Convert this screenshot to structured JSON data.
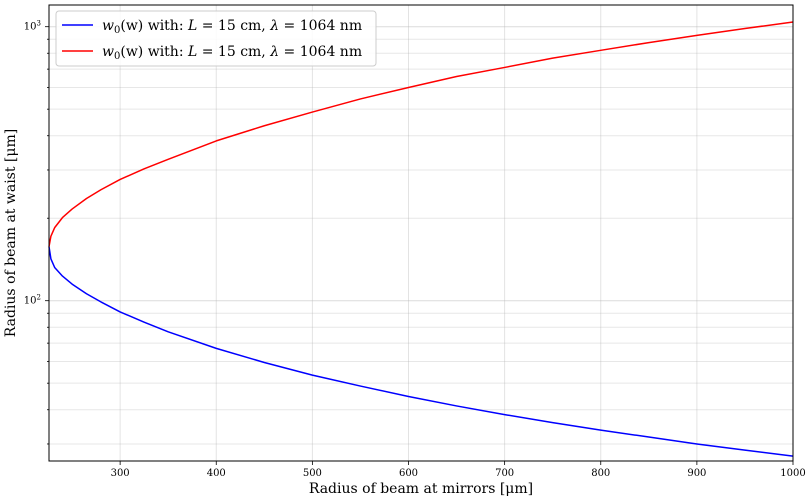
{
  "chart_data": {
    "type": "line",
    "xlabel": "Radius of beam at mirrors [μm]",
    "ylabel": "Radius of beam at waist [μm]",
    "xlim": [
      226,
      1000
    ],
    "ylim": [
      26,
      1200
    ],
    "yscale": "log",
    "grid": true,
    "legend_placement": "top-left",
    "x_ticks": [
      300,
      400,
      500,
      600,
      700,
      800,
      900,
      1000
    ],
    "y_major_ticks": [
      {
        "value": 100,
        "base": "10",
        "exp": "2"
      },
      {
        "value": 1000,
        "base": "10",
        "exp": "3"
      }
    ],
    "series": [
      {
        "name_prefix": "w",
        "name_sub": "0",
        "name_arg": "(w) with: ",
        "name_L": "L",
        "name_mid": " = 15 cm, ",
        "name_lambda": "λ",
        "name_tail": " = 1064 nm",
        "color": "#0000ff",
        "x": [
          226,
          228,
          232,
          240,
          250,
          265,
          280,
          300,
          325,
          350,
          400,
          450,
          500,
          550,
          600,
          650,
          700,
          750,
          800,
          850,
          900,
          950,
          1000
        ],
        "y": [
          157.5,
          142,
          132,
          123,
          115,
          106,
          99,
          91,
          83.5,
          77,
          67,
          59.5,
          53.5,
          48.8,
          44.7,
          41.3,
          38.4,
          35.9,
          33.7,
          31.8,
          30.0,
          28.5,
          27.1
        ]
      },
      {
        "name_prefix": "w",
        "name_sub": "0",
        "name_arg": "(w) with: ",
        "name_L": "L",
        "name_mid": " = 15 cm, ",
        "name_lambda": "λ",
        "name_tail": " = 1064 nm",
        "color": "#ff0000",
        "x": [
          226,
          228,
          232,
          240,
          250,
          265,
          280,
          300,
          325,
          350,
          400,
          450,
          500,
          550,
          600,
          650,
          700,
          750,
          800,
          850,
          900,
          950,
          1000
        ],
        "y": [
          157.5,
          172,
          185,
          201,
          216,
          236,
          254,
          277,
          303,
          328,
          383,
          435,
          488,
          545,
          600,
          658,
          710,
          768,
          820,
          875,
          930,
          985,
          1040
        ]
      }
    ]
  }
}
